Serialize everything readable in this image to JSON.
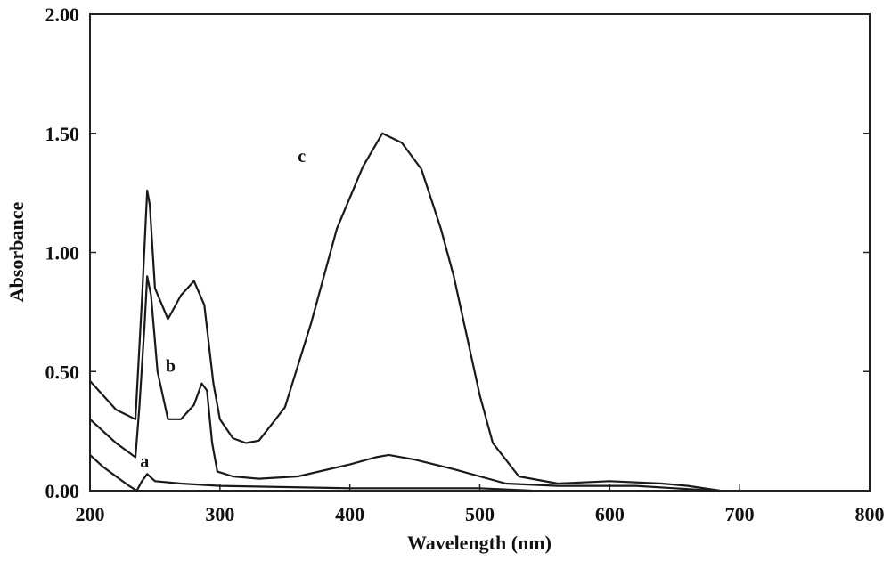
{
  "chart_data": {
    "type": "line",
    "title": "",
    "xlabel": "Wavelength (nm)",
    "ylabel": "Absorbance",
    "xlim": [
      200,
      800
    ],
    "ylim": [
      0,
      2
    ],
    "xticks": [
      "200",
      "300",
      "400",
      "500",
      "600",
      "700",
      "800"
    ],
    "yticks": [
      "0.00",
      "0.50",
      "1.00",
      "1.50",
      "2.00"
    ],
    "grid": false,
    "legend": "none",
    "line_color": "#1a1a1a",
    "series": [
      {
        "name": "a",
        "x": [
          200,
          210,
          220,
          230,
          236,
          240,
          244,
          250,
          270,
          300,
          400,
          500,
          540
        ],
        "y": [
          0.15,
          0.1,
          0.06,
          0.02,
          0.0,
          0.04,
          0.07,
          0.04,
          0.03,
          0.02,
          0.01,
          0.01,
          0.0
        ]
      },
      {
        "name": "b",
        "x": [
          200,
          220,
          235,
          238,
          242,
          244,
          247,
          252,
          260,
          270,
          280,
          286,
          290,
          294,
          298,
          310,
          330,
          360,
          400,
          420,
          430,
          450,
          480,
          520,
          560,
          600,
          620,
          650,
          680
        ],
        "y": [
          0.3,
          0.2,
          0.14,
          0.35,
          0.7,
          0.9,
          0.82,
          0.5,
          0.3,
          0.3,
          0.36,
          0.45,
          0.42,
          0.2,
          0.08,
          0.06,
          0.05,
          0.06,
          0.11,
          0.14,
          0.15,
          0.13,
          0.09,
          0.03,
          0.02,
          0.02,
          0.02,
          0.01,
          0.0
        ]
      },
      {
        "name": "c",
        "x": [
          200,
          220,
          235,
          240,
          244,
          246,
          250,
          260,
          270,
          280,
          288,
          295,
          300,
          310,
          320,
          330,
          350,
          370,
          390,
          410,
          425,
          440,
          455,
          470,
          480,
          490,
          500,
          510,
          530,
          560,
          600,
          640,
          660,
          685
        ],
        "y": [
          0.46,
          0.34,
          0.3,
          0.8,
          1.26,
          1.2,
          0.85,
          0.72,
          0.82,
          0.88,
          0.78,
          0.45,
          0.3,
          0.22,
          0.2,
          0.21,
          0.35,
          0.7,
          1.1,
          1.36,
          1.5,
          1.46,
          1.35,
          1.1,
          0.9,
          0.65,
          0.4,
          0.2,
          0.06,
          0.03,
          0.04,
          0.03,
          0.02,
          0.0
        ]
      }
    ],
    "annotations": [
      {
        "text": "a",
        "x": 242,
        "y": 0.1
      },
      {
        "text": "b",
        "x": 262,
        "y": 0.5
      },
      {
        "text": "c",
        "x": 363,
        "y": 1.38
      }
    ]
  }
}
